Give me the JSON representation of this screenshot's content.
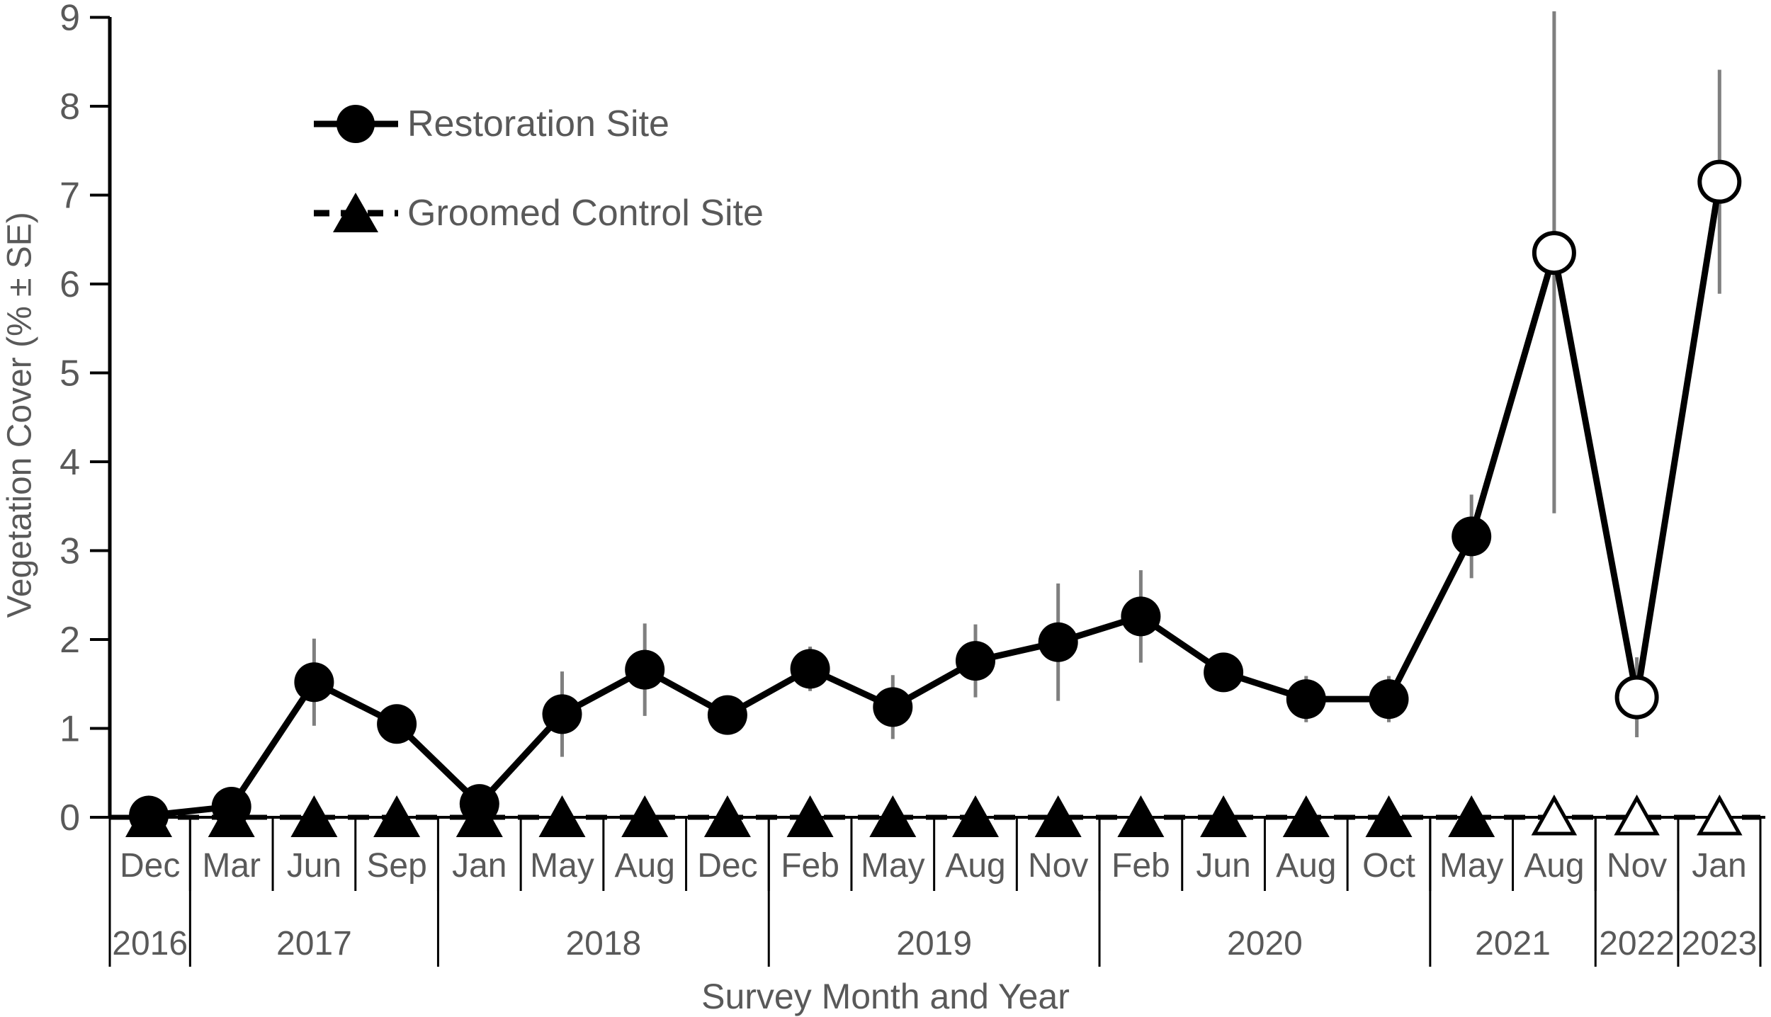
{
  "chart_data": {
    "type": "line",
    "title": "",
    "xlabel": "Survey Month and Year",
    "ylabel": "Vegetation Cover (% ± SE)",
    "ylim": [
      0,
      9
    ],
    "yticks": [
      0,
      1,
      2,
      3,
      4,
      5,
      6,
      7,
      8,
      9
    ],
    "grid": "off",
    "legend_position": "inside-top-left",
    "months": [
      "Dec",
      "Mar",
      "Jun",
      "Sep",
      "Jan",
      "May",
      "Aug",
      "Dec",
      "Feb",
      "May",
      "Aug",
      "Nov",
      "Feb",
      "Jun",
      "Aug",
      "Oct",
      "May",
      "Aug",
      "Nov",
      "Jan"
    ],
    "year_groups": [
      {
        "label": "2016",
        "span": 1
      },
      {
        "label": "2017",
        "span": 3
      },
      {
        "label": "2018",
        "span": 4
      },
      {
        "label": "2019",
        "span": 4
      },
      {
        "label": "2020",
        "span": 4
      },
      {
        "label": "2021",
        "span": 2
      },
      {
        "label": "2022",
        "span": 1
      },
      {
        "label": "2023",
        "span": 1
      }
    ],
    "series": [
      {
        "name": "Restoration Site",
        "marker": "circle",
        "line_style": "solid",
        "values": [
          0.02,
          0.12,
          1.52,
          1.05,
          0.15,
          1.16,
          1.66,
          1.15,
          1.67,
          1.24,
          1.76,
          1.97,
          2.26,
          1.63,
          1.33,
          1.33,
          3.16,
          6.35,
          1.35,
          7.15
        ],
        "se": [
          0.02,
          0.05,
          0.49,
          0.22,
          0.05,
          0.48,
          0.52,
          0.2,
          0.25,
          0.36,
          0.41,
          0.66,
          0.52,
          0.2,
          0.26,
          0.26,
          0.47,
          2.93,
          0.45,
          1.26
        ],
        "open_indices": [
          17,
          18,
          19
        ]
      },
      {
        "name": "Groomed Control Site",
        "marker": "triangle",
        "line_style": "dashed",
        "values": [
          0,
          0,
          0,
          0,
          0,
          0,
          0,
          0,
          0,
          0,
          0,
          0,
          0,
          0,
          0,
          0,
          0,
          0,
          0,
          0
        ],
        "se": [
          0,
          0,
          0,
          0,
          0,
          0,
          0,
          0,
          0,
          0,
          0,
          0,
          0,
          0,
          0,
          0,
          0,
          0,
          0,
          0
        ],
        "open_indices": [
          17,
          18,
          19
        ]
      }
    ],
    "colors": {
      "series": "#000000",
      "error_bar": "#7f7f7f",
      "axis_text": "#595959",
      "axis_line": "#000000"
    }
  }
}
